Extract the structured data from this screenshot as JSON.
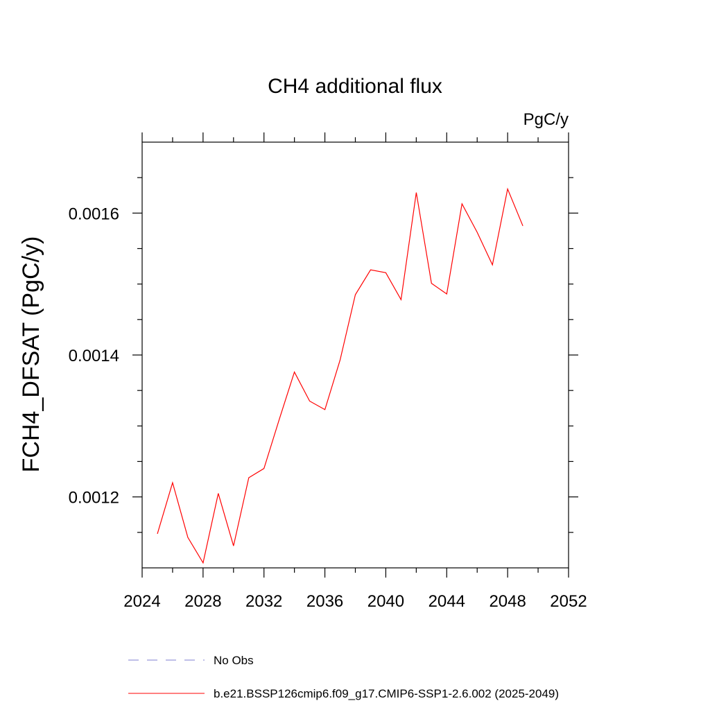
{
  "chart_data": {
    "type": "line",
    "title": "CH4 additional flux",
    "units": "PgC/y",
    "ylabel": "FCH4_DFSAT  (PgC/y)",
    "xlabel": "",
    "xlim": [
      2024,
      2052
    ],
    "ylim": [
      0.0011,
      0.0017
    ],
    "x_ticks": [
      2024,
      2028,
      2032,
      2036,
      2040,
      2044,
      2048,
      2052
    ],
    "x_minor_ticks": [
      2026,
      2030,
      2034,
      2038,
      2042,
      2046,
      2050
    ],
    "y_ticks": [
      0.0012,
      0.0014,
      0.0016
    ],
    "y_tick_labels": [
      "0.0012",
      "0.0014",
      "0.0016"
    ],
    "y_minor_ticks": [
      0.00115,
      0.00125,
      0.0013,
      0.00135,
      0.00145,
      0.0015,
      0.00155,
      0.00165
    ],
    "x_tick_labels": [
      "2024",
      "2028",
      "2032",
      "2036",
      "2040",
      "2044",
      "2048",
      "2052"
    ],
    "grid": false,
    "legend_position": "bottom",
    "series": [
      {
        "name": "b.e21.BSSP126cmip6.f09_g17.CMIP6-SSP1-2.6.002 (2025-2049)",
        "color": "#ff0000",
        "dash": "solid",
        "x": [
          2025,
          2026,
          2027,
          2028,
          2029,
          2030,
          2031,
          2032,
          2033,
          2034,
          2035,
          2036,
          2037,
          2038,
          2039,
          2040,
          2041,
          2042,
          2043,
          2044,
          2045,
          2046,
          2047,
          2048,
          2049
        ],
        "y": [
          0.001148,
          0.00122,
          0.001143,
          0.001107,
          0.001205,
          0.001131,
          0.001227,
          0.00124,
          0.001309,
          0.001376,
          0.001335,
          0.001323,
          0.001393,
          0.001485,
          0.00152,
          0.001516,
          0.001478,
          0.001629,
          0.001501,
          0.001486,
          0.001613,
          0.001573,
          0.001527,
          0.001634,
          0.001582
        ]
      }
    ],
    "legend": [
      {
        "label": "No Obs",
        "color": "#7f7fd0",
        "dash": "dashed"
      },
      {
        "label": "b.e21.BSSP126cmip6.f09_g17.CMIP6-SSP1-2.6.002 (2025-2049)",
        "color": "#ff0000",
        "dash": "solid"
      }
    ]
  }
}
